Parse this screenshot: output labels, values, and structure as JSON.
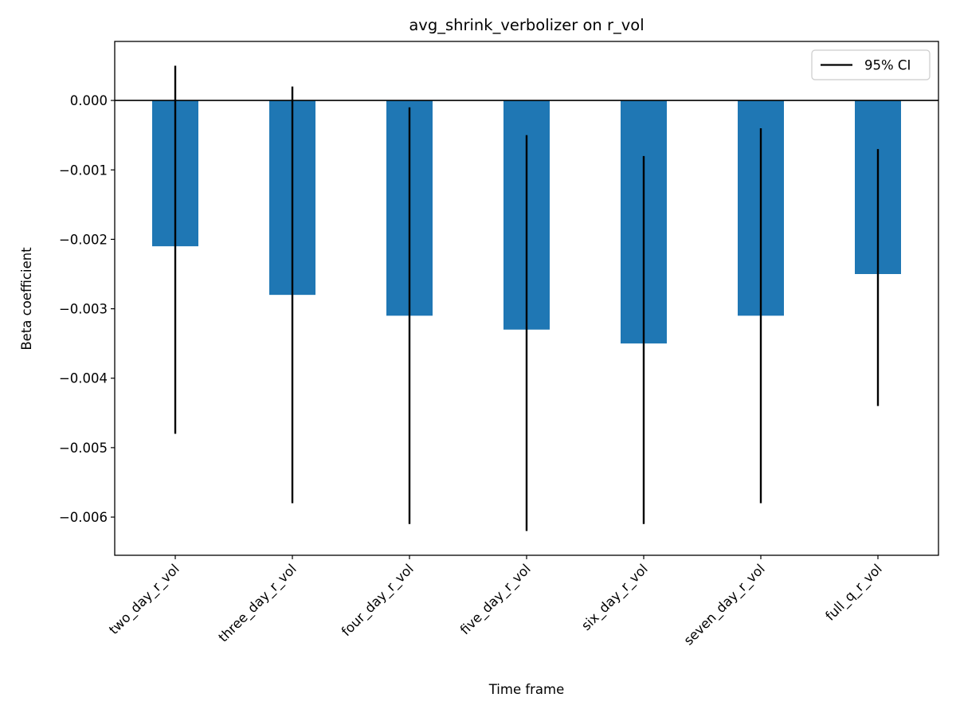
{
  "chart_data": {
    "type": "bar",
    "title": "avg_shrink_verbolizer on r_vol",
    "xlabel": "Time frame",
    "ylabel": "Beta coefficient",
    "categories": [
      "two_day_r_vol",
      "three_day_r_vol",
      "four_day_r_vol",
      "five_day_r_vol",
      "six_day_r_vol",
      "seven_day_r_vol",
      "full_q_r_vol"
    ],
    "values": [
      -0.0021,
      -0.0028,
      -0.0031,
      -0.0033,
      -0.0035,
      -0.0031,
      -0.0025
    ],
    "ci_lower": [
      -0.0048,
      -0.0058,
      -0.0061,
      -0.0062,
      -0.0061,
      -0.0058,
      -0.0044
    ],
    "ci_upper": [
      0.0005,
      0.0002,
      -0.0001,
      -0.0005,
      -0.0008,
      -0.0004,
      -0.0007
    ],
    "ylim": [
      -0.00655,
      0.00085
    ],
    "yticks": [
      0.0,
      -0.001,
      -0.002,
      -0.003,
      -0.004,
      -0.005,
      -0.006
    ],
    "ytick_labels": [
      "0.000",
      "−0.001",
      "−0.002",
      "−0.003",
      "−0.004",
      "−0.005",
      "−0.006"
    ],
    "legend": {
      "label": "95% CI",
      "position": "top-right"
    },
    "bar_color": "#1f77b4",
    "error_color": "#000000",
    "zero_line": true,
    "grid": false
  }
}
